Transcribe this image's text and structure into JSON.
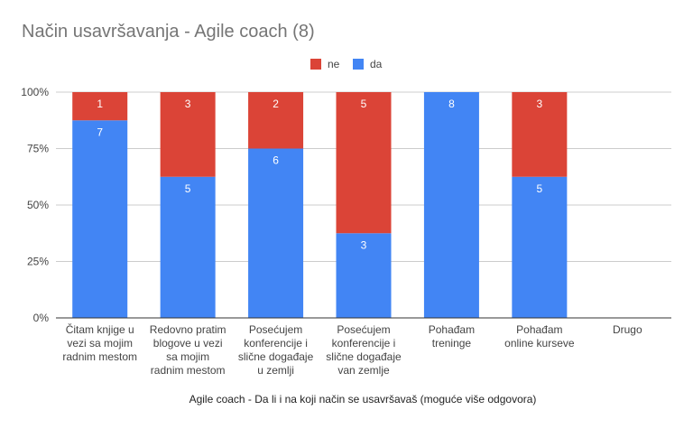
{
  "chart_data": {
    "type": "bar",
    "stacked": "percent",
    "title": "Način usavršavanja - Agile coach (8)",
    "xlabel": "Agile coach - Da li i na koji način se usavršavaš (moguće više odgovora)",
    "ylabel": "",
    "ylim": [
      0,
      100
    ],
    "y_ticks": [
      "0%",
      "25%",
      "50%",
      "75%",
      "100%"
    ],
    "legend_position": "top",
    "grid": true,
    "categories": [
      [
        "Čitam knjige u",
        "vezi sa mojim",
        "radnim mestom"
      ],
      [
        "Redovno pratim",
        "blogove u vezi",
        "sa mojim",
        "radnim mestom"
      ],
      [
        "Posećujem",
        "konferencije i",
        "slične događaje",
        "u zemlji"
      ],
      [
        "Posećujem",
        "konferencije i",
        "slične događaje",
        "van zemlje"
      ],
      [
        "Pohađam",
        "treninge"
      ],
      [
        "Pohađam",
        "online kurseve"
      ],
      [
        "Drugo"
      ]
    ],
    "series": [
      {
        "name": "ne",
        "color": "#db4437",
        "values": [
          1,
          3,
          2,
          5,
          0,
          3,
          0
        ]
      },
      {
        "name": "da",
        "color": "#4285f4",
        "values": [
          7,
          5,
          6,
          3,
          8,
          5,
          0
        ]
      }
    ]
  }
}
